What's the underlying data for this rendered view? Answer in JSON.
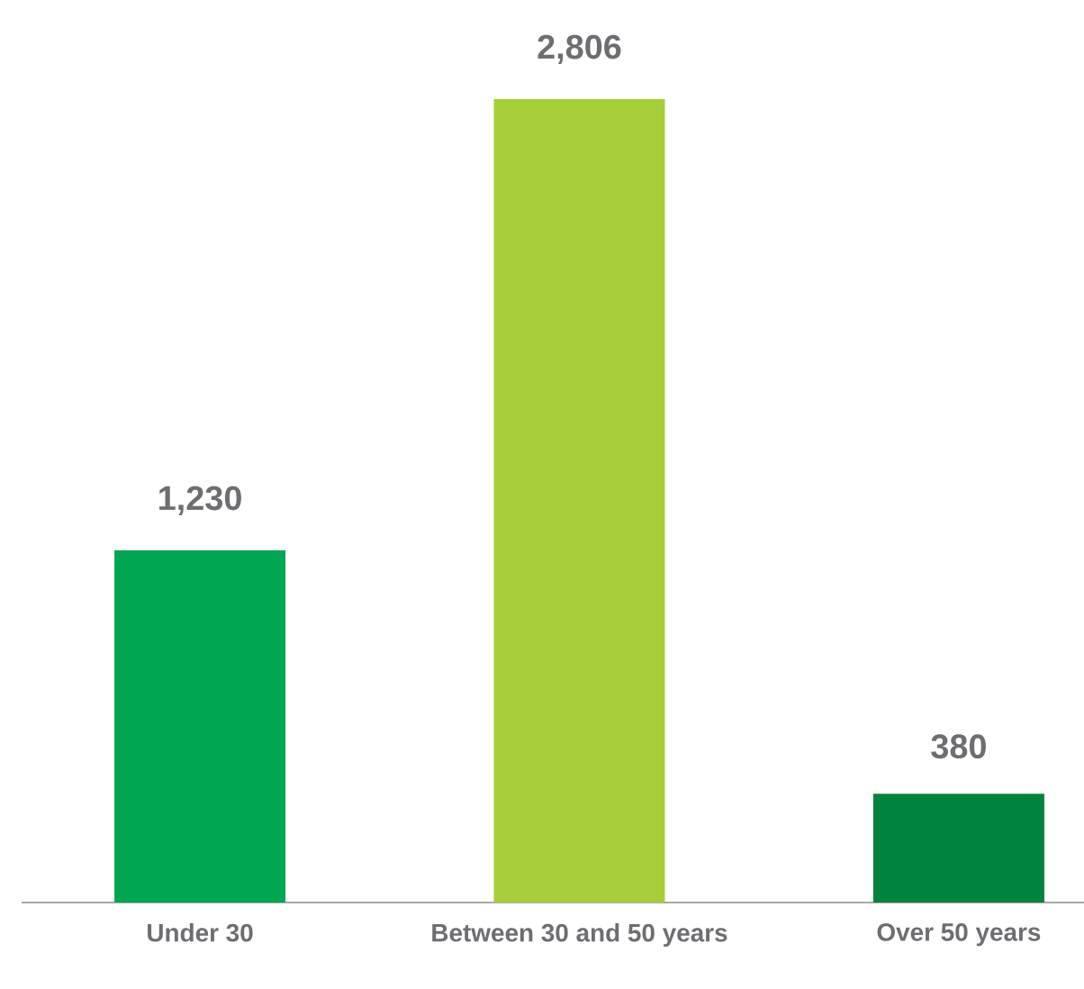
{
  "chart_data": {
    "type": "bar",
    "categories": [
      "Under 30",
      "Between 30 and 50 years",
      "Over 50 years"
    ],
    "values": [
      1230,
      2806,
      380
    ],
    "colors": [
      "#00a651",
      "#a6ce39",
      "#00843d"
    ],
    "value_labels": [
      "1,230",
      "2,806",
      "380"
    ]
  }
}
